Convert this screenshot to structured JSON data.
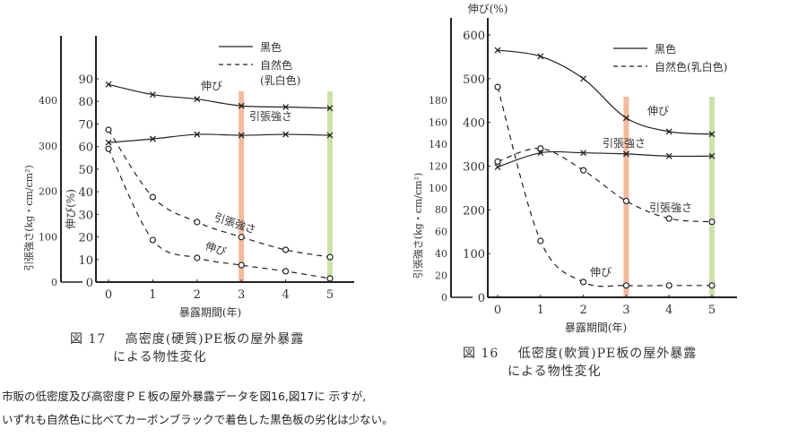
{
  "chart_data": [
    {
      "id": "fig17",
      "type": "line",
      "figure_label": "図 17",
      "title_line1": "高密度(硬質)PE板の屋外暴露",
      "title_line2": "による物性変化",
      "xlabel": "暴露期間(年)",
      "ylabel_left": "引張強さ(kg・cm/cm²)",
      "ylabel_right": "伸び(%)",
      "x": [
        0,
        1,
        2,
        3,
        4,
        5
      ],
      "xlim": [
        0,
        5
      ],
      "tensile_ylim": [
        0,
        400
      ],
      "tensile_ticks": [
        0,
        100,
        200,
        300,
        400
      ],
      "elongation_ylim": [
        0,
        90
      ],
      "elongation_ticks": [
        0,
        10,
        20,
        30,
        40,
        50,
        60,
        70,
        80,
        90
      ],
      "legend": {
        "solid": "黒色",
        "dashed": "自然色",
        "dashed_sub": "(乳白色)"
      },
      "series": [
        {
          "name": "黒色 伸び",
          "label": "伸び",
          "axis": "elongation",
          "style": "solid",
          "marker": "x",
          "values": [
            87.5,
            83,
            81,
            78,
            77.5,
            77
          ]
        },
        {
          "name": "黒色 引張強さ",
          "label": "引張強さ",
          "axis": "tensile",
          "style": "solid",
          "marker": "x",
          "values": [
            307,
            315,
            325,
            323,
            325,
            323
          ]
        },
        {
          "name": "自然色 引張強さ",
          "label": "引張強さ",
          "axis": "tensile",
          "style": "dashed",
          "marker": "o",
          "values": [
            335,
            187,
            132,
            99,
            71,
            55
          ]
        },
        {
          "name": "自然色 伸び",
          "label": "伸び",
          "axis": "elongation",
          "style": "dashed",
          "marker": "o",
          "values": [
            59,
            18.6,
            10.7,
            7.5,
            4.8,
            1.6
          ]
        }
      ],
      "highlights": [
        {
          "x": 3,
          "color": "#f2b393"
        },
        {
          "x": 5,
          "color": "#c6df9e"
        }
      ]
    },
    {
      "id": "fig16",
      "type": "line",
      "figure_label": "図 16",
      "title_line1": "低密度(軟質)PE板の屋外暴露",
      "title_line2": "による物性変化",
      "xlabel": "暴露期間(年)",
      "ylabel_left": "引張強さ(kg・cm/cm²)",
      "ylabel_right": "伸び(%)",
      "x": [
        0,
        1,
        2,
        3,
        4,
        5
      ],
      "xlim": [
        0,
        5
      ],
      "tensile_ylim": [
        0,
        180
      ],
      "tensile_ticks": [
        0,
        20,
        40,
        60,
        80,
        100,
        120,
        140,
        160,
        180
      ],
      "elongation_ylim": [
        0,
        600
      ],
      "elongation_ticks": [
        0,
        100,
        200,
        300,
        400,
        500,
        600
      ],
      "legend": {
        "solid": "黒色",
        "dashed": "自然色(乳白色)"
      },
      "series": [
        {
          "name": "黒色 伸び",
          "label": "伸び",
          "axis": "elongation",
          "style": "solid",
          "marker": "x",
          "values": [
            565,
            551,
            500,
            410,
            379,
            373
          ]
        },
        {
          "name": "黒色 引張強さ",
          "label": "引張強さ",
          "axis": "tensile",
          "style": "solid",
          "marker": "x",
          "values": [
            119,
            132,
            132,
            131,
            129,
            129
          ]
        },
        {
          "name": "自然色 引張強さ",
          "label": "引張強さ",
          "axis": "tensile",
          "style": "dashed",
          "marker": "o",
          "values": [
            124,
            136,
            116,
            88,
            72,
            69
          ]
        },
        {
          "name": "自然色 伸び",
          "label": "伸び",
          "axis": "elongation",
          "style": "dashed",
          "marker": "o",
          "values": [
            481,
            129,
            35,
            27,
            27,
            27
          ]
        }
      ],
      "highlights": [
        {
          "x": 3,
          "color": "#f2b393"
        },
        {
          "x": 5,
          "color": "#c6df9e"
        }
      ]
    }
  ],
  "body_text": {
    "line1": "市販の低密度及び高密度ＰＥ板の屋外暴露データを図16,図17に 示すが,",
    "line2": "いずれも自然色に比べてカーボンブラックで着色した黒色板の劣化は少ない。"
  }
}
